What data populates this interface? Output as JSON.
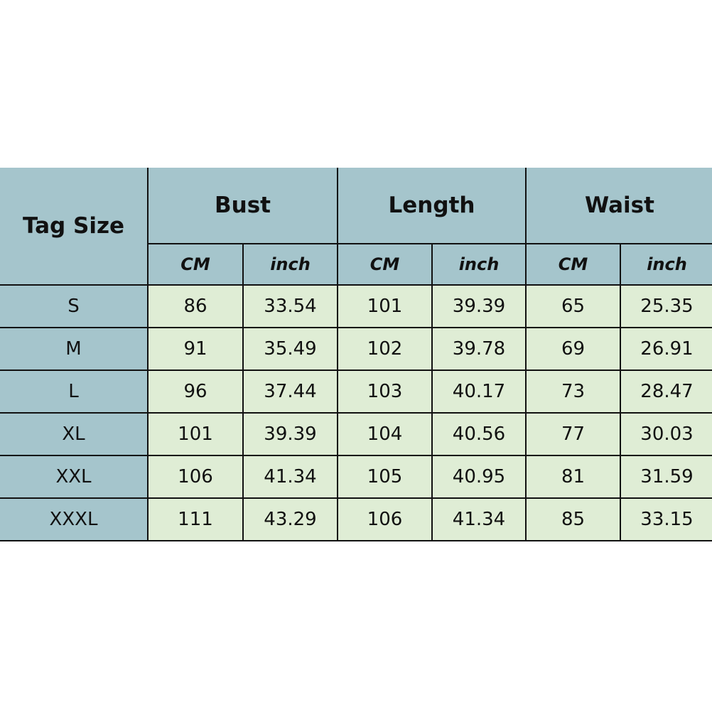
{
  "colors": {
    "header": "#a5c5cc",
    "cell": "#dfedd5",
    "border": "#111111"
  },
  "header": {
    "tag_size": "Tag Size",
    "groups": [
      "Bust",
      "Length",
      "Waist"
    ],
    "units": [
      "CM",
      "inch",
      "CM",
      "inch",
      "CM",
      "inch"
    ]
  },
  "rows": [
    {
      "size": "S",
      "values": [
        "86",
        "33.54",
        "101",
        "39.39",
        "65",
        "25.35"
      ]
    },
    {
      "size": "M",
      "values": [
        "91",
        "35.49",
        "102",
        "39.78",
        "69",
        "26.91"
      ]
    },
    {
      "size": "L",
      "values": [
        "96",
        "37.44",
        "103",
        "40.17",
        "73",
        "28.47"
      ]
    },
    {
      "size": "XL",
      "values": [
        "101",
        "39.39",
        "104",
        "40.56",
        "77",
        "30.03"
      ]
    },
    {
      "size": "XXL",
      "values": [
        "106",
        "41.34",
        "105",
        "40.95",
        "81",
        "31.59"
      ]
    },
    {
      "size": "XXXL",
      "values": [
        "111",
        "43.29",
        "106",
        "41.34",
        "85",
        "33.15"
      ]
    }
  ]
}
